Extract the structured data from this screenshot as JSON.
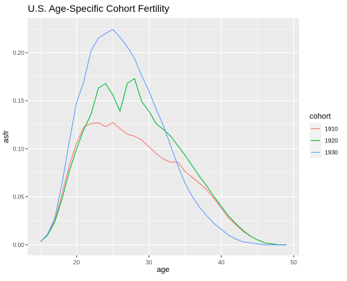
{
  "chart_data": {
    "type": "line",
    "title": "U.S. Age-Specific Cohort Fertility",
    "xlabel": "age",
    "ylabel": "asfr",
    "xlim": [
      13.25,
      50.75
    ],
    "ylim": [
      -0.011,
      0.236
    ],
    "x_ticks": [
      20,
      30,
      40,
      50
    ],
    "y_ticks": [
      0.0,
      0.05,
      0.1,
      0.15,
      0.2
    ],
    "x_tick_labels": [
      "20",
      "30",
      "40",
      "50"
    ],
    "y_tick_labels": [
      "0.00",
      "0.05",
      "0.10",
      "0.15",
      "0.20"
    ],
    "grid": true,
    "legend": {
      "title": "cohort",
      "position": "right"
    },
    "x": [
      15,
      16,
      17,
      18,
      19,
      20,
      21,
      22,
      23,
      24,
      25,
      26,
      27,
      28,
      29,
      30,
      31,
      32,
      33,
      34,
      35,
      36,
      37,
      38,
      39,
      40,
      41,
      42,
      43,
      44,
      45,
      46,
      47,
      48,
      49
    ],
    "series": [
      {
        "name": "1910",
        "color": "#F8766D",
        "values": [
          0.003,
          0.011,
          0.025,
          0.053,
          0.083,
          0.106,
          0.123,
          0.126,
          0.127,
          0.123,
          0.127,
          0.121,
          0.115,
          0.113,
          0.109,
          0.102,
          0.095,
          0.089,
          0.086,
          0.086,
          0.076,
          0.07,
          0.064,
          0.057,
          0.048,
          0.038,
          0.028,
          0.021,
          0.014,
          0.009,
          0.005,
          0.002,
          0.001,
          0.0,
          0.0
        ]
      },
      {
        "name": "1920",
        "color": "#00BA38",
        "values": [
          0.003,
          0.01,
          0.024,
          0.048,
          0.077,
          0.1,
          0.12,
          0.136,
          0.163,
          0.168,
          0.156,
          0.139,
          0.168,
          0.173,
          0.149,
          0.139,
          0.126,
          0.12,
          0.113,
          0.103,
          0.093,
          0.082,
          0.071,
          0.061,
          0.05,
          0.04,
          0.03,
          0.022,
          0.015,
          0.009,
          0.005,
          0.002,
          0.001,
          0.0,
          0.0
        ]
      },
      {
        "name": "1930",
        "color": "#619CFF",
        "values": [
          0.003,
          0.011,
          0.028,
          0.064,
          0.108,
          0.148,
          0.17,
          0.202,
          0.215,
          0.22,
          0.224,
          0.216,
          0.206,
          0.194,
          0.176,
          0.16,
          0.141,
          0.124,
          0.103,
          0.082,
          0.064,
          0.05,
          0.039,
          0.03,
          0.022,
          0.016,
          0.01,
          0.006,
          0.003,
          0.002,
          0.001,
          0.0,
          0.0,
          0.0,
          0.0
        ]
      }
    ]
  }
}
